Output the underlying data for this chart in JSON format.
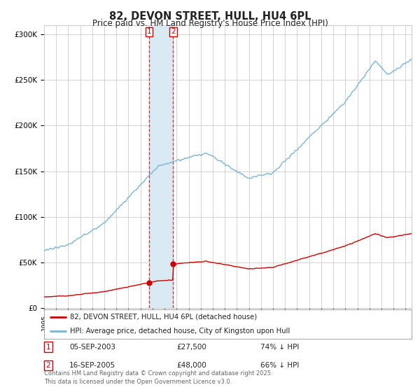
{
  "title": "82, DEVON STREET, HULL, HU4 6PL",
  "subtitle": "Price paid vs. HM Land Registry's House Price Index (HPI)",
  "ylabel_ticks": [
    "£0",
    "£50K",
    "£100K",
    "£150K",
    "£200K",
    "£250K",
    "£300K"
  ],
  "ytick_values": [
    0,
    50000,
    100000,
    150000,
    200000,
    250000,
    300000
  ],
  "ylim": [
    0,
    310000
  ],
  "xlim_start": 1995.0,
  "xlim_end": 2025.5,
  "purchase1_year": 2003,
  "purchase1_month": 9,
  "purchase1_price": 27500,
  "purchase2_year": 2005,
  "purchase2_month": 9,
  "purchase2_price": 48000,
  "legend_line1": "82, DEVON STREET, HULL, HU4 6PL (detached house)",
  "legend_line2": "HPI: Average price, detached house, City of Kingston upon Hull",
  "table_rows": [
    [
      "1",
      "05-SEP-2003",
      "£27,500",
      "74% ↓ HPI"
    ],
    [
      "2",
      "16-SEP-2005",
      "£48,000",
      "66% ↓ HPI"
    ]
  ],
  "footer": "Contains HM Land Registry data © Crown copyright and database right 2025.\nThis data is licensed under the Open Government Licence v3.0.",
  "red_color": "#cc0000",
  "blue_color": "#7ab3d4",
  "shading_color": "#daeaf5",
  "grid_color": "#cccccc",
  "background_color": "#ffffff"
}
